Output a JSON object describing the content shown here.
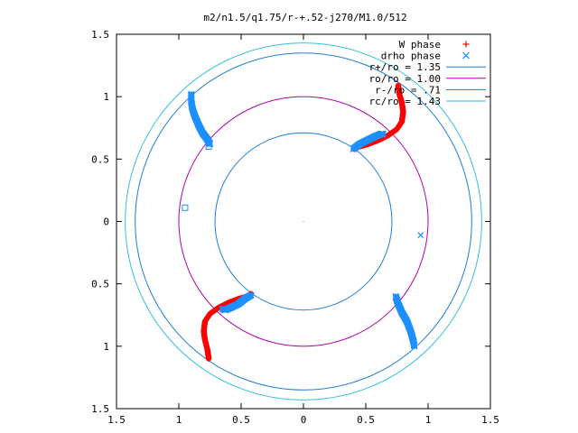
{
  "chart_data": {
    "type": "scatter",
    "title": "m2/n1.5/q1.75/r-+.52-j270/M1.0/512",
    "xlim": [
      -1.5,
      1.5
    ],
    "ylim": [
      -1.5,
      1.5
    ],
    "x_ticks": [
      {
        "value": -1.5,
        "label": "1.5"
      },
      {
        "value": -1.0,
        "label": "1"
      },
      {
        "value": -0.5,
        "label": "0.5"
      },
      {
        "value": 0.0,
        "label": "0"
      },
      {
        "value": 0.5,
        "label": "0.5"
      },
      {
        "value": 1.0,
        "label": "1"
      },
      {
        "value": 1.5,
        "label": "1.5"
      }
    ],
    "y_ticks": [
      {
        "value": 1.5,
        "label": "1.5"
      },
      {
        "value": 1.0,
        "label": "1"
      },
      {
        "value": 0.5,
        "label": "0.5"
      },
      {
        "value": 0.0,
        "label": "0"
      },
      {
        "value": -0.5,
        "label": "0.5"
      },
      {
        "value": -1.0,
        "label": "1"
      },
      {
        "value": -1.5,
        "label": "1.5"
      }
    ],
    "legend_position": "top-right",
    "grid": false,
    "circles": [
      {
        "name": "r+/ro = 1.35",
        "radius": 1.35,
        "color": "#1f7fd6"
      },
      {
        "name": "ro/ro = 1.00",
        "radius": 1.0,
        "color": "#b000b0"
      },
      {
        "name": "r-/ro = .71",
        "radius": 0.71,
        "color": "#1f7fd6"
      },
      {
        "name": "rc/ro = 1.43",
        "radius": 1.43,
        "color": "#33c0e0"
      }
    ],
    "series": [
      {
        "name": "W phase",
        "marker": "+",
        "color": "#ff0000",
        "segments": [
          [
            [
              0.76,
              1.09
            ],
            [
              0.77,
              1.02
            ],
            [
              0.79,
              0.95
            ],
            [
              0.8,
              0.88
            ],
            [
              0.79,
              0.8
            ],
            [
              0.75,
              0.74
            ],
            [
              0.68,
              0.69
            ],
            [
              0.6,
              0.65
            ],
            [
              0.52,
              0.62
            ],
            [
              0.45,
              0.6
            ],
            [
              0.41,
              0.58
            ]
          ],
          [
            [
              -0.76,
              -1.1
            ],
            [
              -0.77,
              -1.03
            ],
            [
              -0.79,
              -0.95
            ],
            [
              -0.8,
              -0.88
            ],
            [
              -0.79,
              -0.8
            ],
            [
              -0.75,
              -0.74
            ],
            [
              -0.68,
              -0.69
            ],
            [
              -0.6,
              -0.65
            ],
            [
              -0.52,
              -0.62
            ],
            [
              -0.45,
              -0.6
            ],
            [
              -0.42,
              -0.58
            ]
          ]
        ]
      },
      {
        "name": "drho phase",
        "marker": "x",
        "color": "#1e90ff",
        "segments": [
          [
            [
              -0.9,
              1.02
            ],
            [
              -0.9,
              0.96
            ],
            [
              -0.89,
              0.9
            ],
            [
              -0.87,
              0.84
            ],
            [
              -0.84,
              0.77
            ],
            [
              -0.81,
              0.71
            ],
            [
              -0.78,
              0.67
            ],
            [
              -0.76,
              0.64
            ],
            [
              -0.75,
              0.62
            ]
          ],
          [
            [
              0.4,
              0.58
            ],
            [
              0.45,
              0.62
            ],
            [
              0.51,
              0.65
            ],
            [
              0.57,
              0.68
            ],
            [
              0.62,
              0.7
            ],
            [
              0.64,
              0.7
            ]
          ],
          [
            [
              -0.42,
              -0.59
            ],
            [
              -0.47,
              -0.62
            ],
            [
              -0.52,
              -0.66
            ],
            [
              -0.58,
              -0.69
            ],
            [
              -0.63,
              -0.71
            ],
            [
              -0.65,
              -0.7
            ]
          ],
          [
            [
              0.74,
              -0.6
            ],
            [
              0.76,
              -0.66
            ],
            [
              0.79,
              -0.73
            ],
            [
              0.83,
              -0.8
            ],
            [
              0.86,
              -0.88
            ],
            [
              0.88,
              -0.95
            ],
            [
              0.89,
              -1.0
            ]
          ]
        ],
        "isolated": [
          [
            0.94,
            -0.11
          ]
        ]
      },
      {
        "name": "",
        "marker": "square",
        "color": "#1e90ff",
        "segments": [],
        "isolated": [
          [
            -0.95,
            0.11
          ],
          [
            -0.76,
            0.6
          ]
        ]
      }
    ]
  }
}
